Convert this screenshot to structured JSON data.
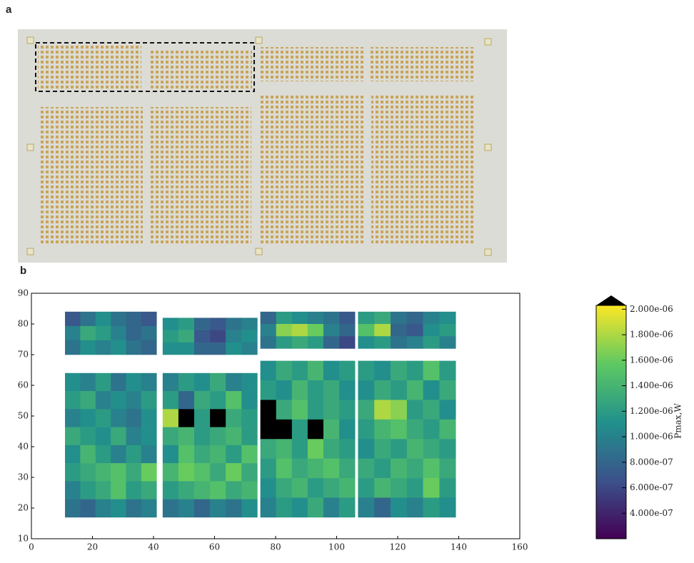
{
  "panel_a_label": "a",
  "chart_data": {
    "type": "heatmap",
    "panel_label": "b",
    "xlim": [
      0,
      160
    ],
    "xticks": [
      0,
      20,
      40,
      60,
      80,
      100,
      120,
      140,
      160
    ],
    "ylim": [
      10,
      90
    ],
    "yticks": [
      10,
      20,
      30,
      40,
      50,
      60,
      70,
      80,
      90
    ],
    "colorbar": {
      "label": "Pmax,W",
      "clim": [
        2e-07,
        2.03e-06
      ],
      "colormap": "viridis",
      "extend": "max",
      "ticks": [
        {
          "value": 4e-07,
          "label": "4.000e-07"
        },
        {
          "value": 6e-07,
          "label": "6.000e-07"
        },
        {
          "value": 8e-07,
          "label": "8.000e-07"
        },
        {
          "value": 1e-06,
          "label": "1.000e-06"
        },
        {
          "value": 1.2e-06,
          "label": "1.200e-06"
        },
        {
          "value": 1.4e-06,
          "label": "1.400e-06"
        },
        {
          "value": 1.6e-06,
          "label": "1.600e-06"
        },
        {
          "value": 1.8e-06,
          "label": "1.800e-06"
        },
        {
          "value": 2e-06,
          "label": "2.000e-06"
        }
      ]
    },
    "blocks": [
      {
        "x": [
          11,
          41
        ],
        "y": [
          70,
          84
        ],
        "values": [
          [
            7e-07,
            9e-07,
            1.1e-06,
            9e-07,
            8e-07,
            7e-07
          ],
          [
            1e-06,
            1.3e-06,
            1.2e-06,
            1e-06,
            8e-07,
            9e-07
          ],
          [
            9e-07,
            1.1e-06,
            1e-06,
            1.1e-06,
            9e-07,
            8e-07
          ]
        ]
      },
      {
        "x": [
          43,
          74
        ],
        "y": [
          70,
          82
        ],
        "values": [
          [
            1.1e-06,
            1.2e-06,
            8e-07,
            7e-07,
            9e-07,
            1e-06
          ],
          [
            1.2e-06,
            1.3e-06,
            7e-07,
            6e-07,
            1e-06,
            1.1e-06
          ],
          [
            1.1e-06,
            1.1e-06,
            8e-07,
            8e-07,
            1.1e-06,
            1e-06
          ]
        ]
      },
      {
        "x": [
          75,
          106
        ],
        "y": [
          72,
          84
        ],
        "values": [
          [
            8e-07,
            1.2e-06,
            1.1e-06,
            1e-06,
            9e-07,
            7e-07
          ],
          [
            1e-06,
            1.7e-06,
            1.8e-06,
            1.6e-06,
            1e-06,
            8e-07
          ],
          [
            9e-07,
            1.2e-06,
            1.3e-06,
            1.2e-06,
            8e-07,
            6e-07
          ]
        ]
      },
      {
        "x": [
          107,
          139
        ],
        "y": [
          72,
          84
        ],
        "values": [
          [
            1.2e-06,
            1.3e-06,
            9e-07,
            8e-07,
            1e-06,
            1.1e-06
          ],
          [
            1.5e-06,
            1.8e-06,
            8e-07,
            7e-07,
            1.1e-06,
            1.2e-06
          ],
          [
            1.1e-06,
            1.2e-06,
            9e-07,
            1e-06,
            1.2e-06,
            1e-06
          ]
        ]
      },
      {
        "x": [
          11,
          41
        ],
        "y": [
          17,
          64
        ],
        "values": [
          [
            1.1e-06,
            1e-06,
            1.2e-06,
            9e-07,
            1.1e-06,
            1e-06
          ],
          [
            1.2e-06,
            1.3e-06,
            1e-06,
            1.1e-06,
            1e-06,
            1.2e-06
          ],
          [
            1e-06,
            1.1e-06,
            1.2e-06,
            1e-06,
            9e-07,
            1.1e-06
          ],
          [
            1.3e-06,
            1.2e-06,
            1.1e-06,
            1.3e-06,
            1e-06,
            1.1e-06
          ],
          [
            1.1e-06,
            1.4e-06,
            1.2e-06,
            1e-06,
            1.2e-06,
            1e-06
          ],
          [
            1.2e-06,
            1.3e-06,
            1.4e-06,
            1.5e-06,
            1.3e-06,
            1.6e-06
          ],
          [
            1e-06,
            1.2e-06,
            1.3e-06,
            1.5e-06,
            1.2e-06,
            1.3e-06
          ],
          [
            9e-07,
            8e-07,
            1e-06,
            1.1e-06,
            9e-07,
            1e-06
          ]
        ]
      },
      {
        "x": [
          43,
          74
        ],
        "y": [
          17,
          64
        ],
        "values": [
          [
            1e-06,
            1.2e-06,
            1.1e-06,
            1.3e-06,
            1e-06,
            1.1e-06
          ],
          [
            1.2e-06,
            8e-07,
            1.3e-06,
            1.2e-06,
            1.5e-06,
            1.1e-06
          ],
          [
            1.8e-06,
            1e-07,
            1.2e-06,
            1e-07,
            1.3e-06,
            1.2e-06
          ],
          [
            1.3e-06,
            1.4e-06,
            1.2e-06,
            1.3e-06,
            1.4e-06,
            1.2e-06
          ],
          [
            1.1e-06,
            1.5e-06,
            1.3e-06,
            1.4e-06,
            1.2e-06,
            1.5e-06
          ],
          [
            1.4e-06,
            1.6e-06,
            1.5e-06,
            1.3e-06,
            1.6e-06,
            1.3e-06
          ],
          [
            1.2e-06,
            1.3e-06,
            1.4e-06,
            1.5e-06,
            1.3e-06,
            1.4e-06
          ],
          [
            9e-07,
            1e-06,
            8e-07,
            1e-06,
            9e-07,
            1.1e-06
          ]
        ]
      },
      {
        "x": [
          75,
          106
        ],
        "y": [
          17,
          68
        ],
        "values": [
          [
            1.1e-06,
            1.3e-06,
            1.2e-06,
            1.4e-06,
            1.1e-06,
            1.2e-06
          ],
          [
            1.2e-06,
            1.1e-06,
            1.4e-06,
            1.2e-06,
            1.3e-06,
            1.1e-06
          ],
          [
            1e-07,
            1.3e-06,
            1.5e-06,
            1.2e-06,
            1.3e-06,
            1.2e-06
          ],
          [
            1e-07,
            1e-07,
            1.2e-06,
            1e-07,
            1.4e-06,
            1.1e-06
          ],
          [
            1.3e-06,
            1.4e-06,
            1.2e-06,
            1.6e-06,
            1.3e-06,
            1.2e-06
          ],
          [
            1.2e-06,
            1.5e-06,
            1.3e-06,
            1.4e-06,
            1.5e-06,
            1.3e-06
          ],
          [
            1.1e-06,
            1.3e-06,
            1.4e-06,
            1.2e-06,
            1.3e-06,
            1.4e-06
          ],
          [
            1e-06,
            1.2e-06,
            1.1e-06,
            1.3e-06,
            1e-06,
            1.2e-06
          ]
        ]
      },
      {
        "x": [
          107,
          139
        ],
        "y": [
          17,
          68
        ],
        "values": [
          [
            1.2e-06,
            1.1e-06,
            1.3e-06,
            1.2e-06,
            1.5e-06,
            1.2e-06
          ],
          [
            1.1e-06,
            1.3e-06,
            1.2e-06,
            1.4e-06,
            1.1e-06,
            1.3e-06
          ],
          [
            1.3e-06,
            1.8e-06,
            1.7e-06,
            1.2e-06,
            1.3e-06,
            1.1e-06
          ],
          [
            1.2e-06,
            1.4e-06,
            1.5e-06,
            1.3e-06,
            1.2e-06,
            1.4e-06
          ],
          [
            1.1e-06,
            1.3e-06,
            1.2e-06,
            1.4e-06,
            1.3e-06,
            1.2e-06
          ],
          [
            1.3e-06,
            1.2e-06,
            1.4e-06,
            1.3e-06,
            1.5e-06,
            1.3e-06
          ],
          [
            1.2e-06,
            1.4e-06,
            1.3e-06,
            1.2e-06,
            1.6e-06,
            1.2e-06
          ],
          [
            1e-06,
            8e-07,
            1.1e-06,
            1e-06,
            1.2e-06,
            1.1e-06
          ]
        ]
      }
    ]
  }
}
